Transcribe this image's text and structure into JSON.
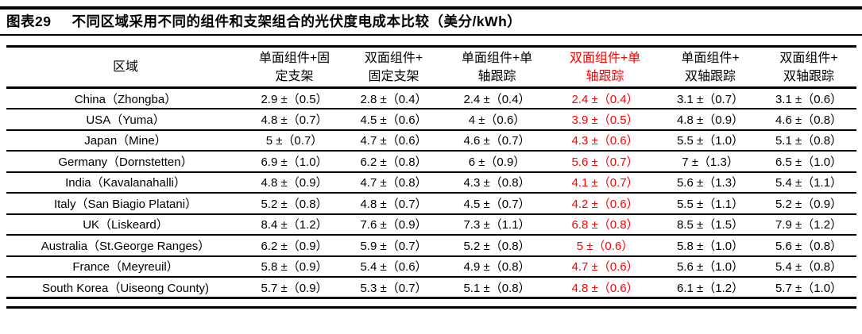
{
  "figure": {
    "label": "图表29",
    "title": "不同区域采用不同的组件和支架组合的光伏度电成本比较（美分/kWh）"
  },
  "colors": {
    "highlight_red": "#ff0000",
    "text": "#000000"
  },
  "table": {
    "region_header": "区域",
    "columns": [
      {
        "line1": "单面组件+固",
        "line2": "定支架",
        "highlight": false
      },
      {
        "line1": "双面组件+",
        "line2": "固定支架",
        "highlight": false
      },
      {
        "line1": "单面组件+单",
        "line2": "轴跟踪",
        "highlight": false
      },
      {
        "line1": "双面组件+单",
        "line2": "轴跟踪",
        "highlight": true
      },
      {
        "line1": "单面组件+",
        "line2": "双轴跟踪",
        "highlight": false
      },
      {
        "line1": "双面组件+",
        "line2": "双轴跟踪",
        "highlight": false
      }
    ],
    "highlight_column_index": 3,
    "rows": [
      {
        "region": "China（Zhongba）",
        "values": [
          "2.9 ±（0.5）",
          "2.8 ±（0.4）",
          "2.4 ±（0.4）",
          "2.4 ±（0.4）",
          "3.1 ±（0.7）",
          "3.1 ±（0.6）"
        ]
      },
      {
        "region": "USA（Yuma）",
        "values": [
          "4.8 ±（0.7）",
          "4.5 ±（0.6）",
          "4 ±（0.6）",
          "3.9 ±（0.5）",
          "4.8 ±（0.9）",
          "4.6 ±（0.8）"
        ]
      },
      {
        "region": "Japan（Mine）",
        "values": [
          "5 ±（0.7）",
          "4.7 ±（0.6）",
          "4.6 ±（0.7）",
          "4.3 ±（0.6）",
          "5.5 ±（1.0）",
          "5.1 ±（0.8）"
        ]
      },
      {
        "region": "Germany（Dornstetten）",
        "values": [
          "6.9 ±（1.0）",
          "6.2 ±（0.8）",
          "6 ±（0.9）",
          "5.6 ±（0.7）",
          "7 ±（1.3）",
          "6.5 ±（1.0）"
        ]
      },
      {
        "region": "India（Kavalanahalli）",
        "values": [
          "4.8 ±（0.9）",
          "4.7 ±（0.8）",
          "4.3 ±（0.8）",
          "4.1 ±（0.7）",
          "5.6 ±（1.3）",
          "5.4 ±（1.1）"
        ]
      },
      {
        "region": "Italy（San Biagio Platani）",
        "values": [
          "5.2 ±（0.8）",
          "4.8 ±（0.7）",
          "4.5 ±（0.7）",
          "4.2 ±（0.6）",
          "5.5 ±（1.1）",
          "5.2 ±（0.9）"
        ]
      },
      {
        "region": "UK（Liskeard）",
        "values": [
          "8.4 ±（1.2）",
          "7.6 ±（0.9）",
          "7.3 ±（1.1）",
          "6.8 ±（0.8）",
          "8.5 ±（1.5）",
          "7.9 ±（1.2）"
        ]
      },
      {
        "region": "Australia（St.George Ranges）",
        "values": [
          "6.2 ±（0.9）",
          "5.9 ±（0.7）",
          "5.2 ±（0.8）",
          "5 ±（0.6）",
          "5.8 ±（1.0）",
          "5.6 ±（0.8）"
        ]
      },
      {
        "region": "France（Meyreuil）",
        "values": [
          "5.8 ±（0.9）",
          "5.4 ±（0.6）",
          "4.9 ±（0.8）",
          "4.7 ±（0.6）",
          "5.6 ±（1.0）",
          "5.4 ±（0.8）"
        ]
      },
      {
        "region": "South Korea（Uiseong County)",
        "values": [
          "5.7 ±（0.9）",
          "5.3 ±（0.7）",
          "5.1 ±（0.8）",
          "4.8 ±（0.6）",
          "6.1 ±（1.2）",
          "5.7 ±（1.0）"
        ]
      }
    ]
  }
}
